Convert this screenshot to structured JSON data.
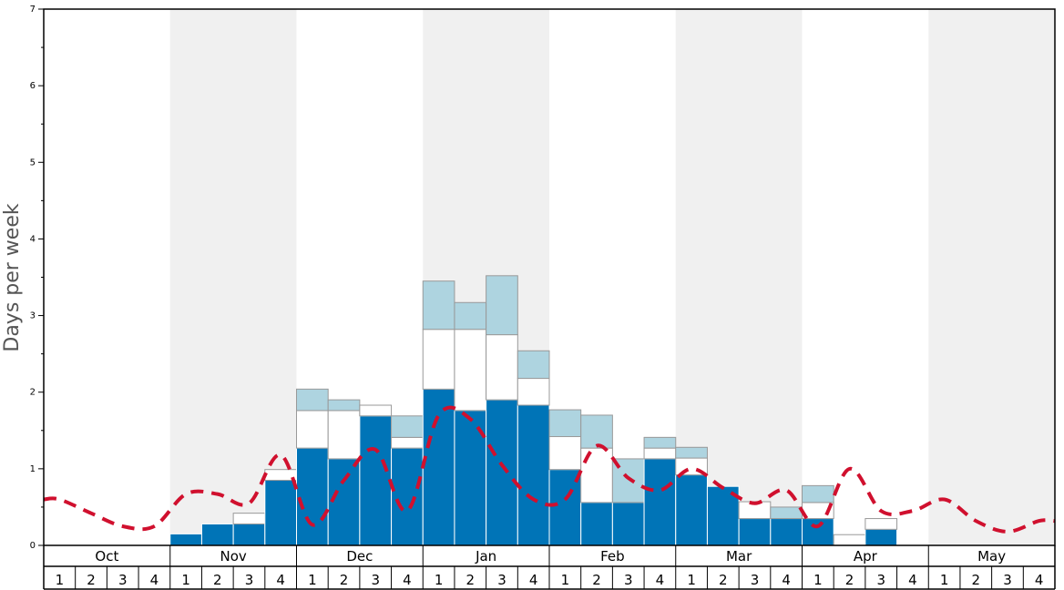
{
  "chart_data": {
    "type": "bar",
    "ylabel": "Days per week",
    "ylim": [
      0,
      7
    ],
    "yticks": [
      0,
      1,
      2,
      3,
      4,
      5,
      6,
      7
    ],
    "months": [
      "Oct",
      "Nov",
      "Dec",
      "Jan",
      "Feb",
      "Mar",
      "Apr",
      "May"
    ],
    "week_labels": [
      "1",
      "2",
      "3",
      "4"
    ],
    "stacked": true,
    "colors": {
      "primary": "#0074b7",
      "secondary": "#ffffff",
      "tertiary": "#aed4e0",
      "line": "#d0102e",
      "band": "#f0f0f0"
    },
    "series": [
      {
        "values": [
          0,
          0,
          0,
          0,
          0.15,
          0.28,
          0.28,
          0.85,
          1.27,
          1.13,
          1.69,
          1.27,
          2.04,
          1.76,
          1.9,
          1.83,
          0.99,
          0.56,
          0.56,
          1.13,
          0.92,
          0.77,
          0.35,
          0.35,
          0.35,
          0,
          0.21,
          0,
          0,
          0,
          0,
          0
        ]
      },
      {
        "values": [
          0,
          0,
          0,
          0,
          0,
          0,
          0.14,
          0.14,
          0.49,
          0.63,
          0.14,
          0.14,
          0.78,
          1.06,
          0.85,
          0.35,
          0.43,
          0.71,
          0,
          0.14,
          0.22,
          0,
          0.22,
          0,
          0.21,
          0.14,
          0.14,
          0,
          0,
          0,
          0,
          0
        ]
      },
      {
        "values": [
          0,
          0,
          0,
          0,
          0,
          0,
          0,
          0,
          0.28,
          0.14,
          0,
          0.28,
          0.63,
          0.35,
          0.77,
          0.36,
          0.35,
          0.43,
          0.57,
          0.14,
          0.14,
          0,
          0,
          0.15,
          0.22,
          0,
          0,
          0,
          0,
          0,
          0,
          0
        ]
      }
    ],
    "line": {
      "style": "dashed",
      "values": [
        0.6,
        0.42,
        0.25,
        0.25,
        0.67,
        0.67,
        0.55,
        1.18,
        0.27,
        0.85,
        1.25,
        0.45,
        1.7,
        1.65,
        1.05,
        0.6,
        0.6,
        1.3,
        0.88,
        0.72,
        1.0,
        0.75,
        0.55,
        0.72,
        0.25,
        1.0,
        0.45,
        0.45,
        0.6,
        0.32,
        0.18,
        0.32
      ]
    },
    "grid": false,
    "legend": "none"
  }
}
